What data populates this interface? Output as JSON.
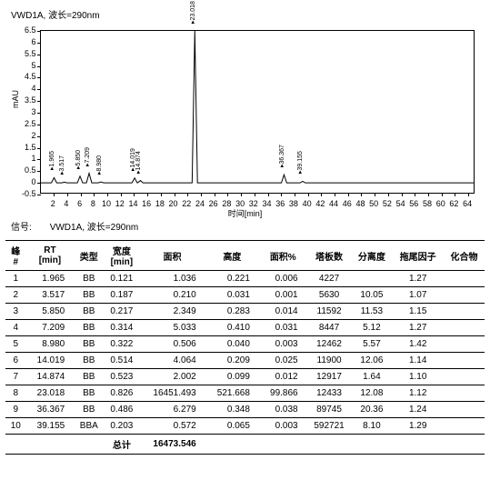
{
  "signal_header": "VWD1A, 波长=290nm",
  "signal_label": "信号:",
  "chart": {
    "type": "line",
    "xlabel": "时间[min]",
    "ylabel": "mAU",
    "xlim": [
      0,
      65
    ],
    "xtick_step": 2,
    "ylim": [
      -0.5,
      6.5
    ],
    "ytick_step": 0.5,
    "baseline": 0,
    "peaks": [
      {
        "rt": 1.965,
        "h": 0.221,
        "label": "1.965"
      },
      {
        "rt": 3.517,
        "h": 0.031,
        "label": "3.517"
      },
      {
        "rt": 5.85,
        "h": 0.283,
        "label": "5.850"
      },
      {
        "rt": 7.209,
        "h": 0.41,
        "label": "7.209"
      },
      {
        "rt": 8.98,
        "h": 0.04,
        "label": "8.980"
      },
      {
        "rt": 14.019,
        "h": 0.209,
        "label": "14.019"
      },
      {
        "rt": 14.874,
        "h": 0.099,
        "label": "14.874"
      },
      {
        "rt": 23.018,
        "h": 6.5,
        "label": "23.018"
      },
      {
        "rt": 36.367,
        "h": 0.348,
        "label": "36.367"
      },
      {
        "rt": 39.155,
        "h": 0.065,
        "label": "39.155"
      }
    ],
    "colors": {
      "line": "#000000",
      "bg": "#ffffff"
    }
  },
  "table": {
    "columns": [
      "峰\n#",
      "RT\n[min]",
      "类型",
      "宽度\n[min]",
      "面积",
      "高度",
      "面积%",
      "塔板数",
      "分离度",
      "拖尾因子",
      "化合物"
    ],
    "rows": [
      [
        "1",
        "1.965",
        "BB",
        "0.121",
        "1.036",
        "0.221",
        "0.006",
        "4227",
        "",
        "1.27",
        ""
      ],
      [
        "2",
        "3.517",
        "BB",
        "0.187",
        "0.210",
        "0.031",
        "0.001",
        "5630",
        "10.05",
        "1.07",
        ""
      ],
      [
        "3",
        "5.850",
        "BB",
        "0.217",
        "2.349",
        "0.283",
        "0.014",
        "11592",
        "11.53",
        "1.15",
        ""
      ],
      [
        "4",
        "7.209",
        "BB",
        "0.314",
        "5.033",
        "0.410",
        "0.031",
        "8447",
        "5.12",
        "1.27",
        ""
      ],
      [
        "5",
        "8.980",
        "BB",
        "0.322",
        "0.506",
        "0.040",
        "0.003",
        "12462",
        "5.57",
        "1.42",
        ""
      ],
      [
        "6",
        "14.019",
        "BB",
        "0.514",
        "4.064",
        "0.209",
        "0.025",
        "11900",
        "12.06",
        "1.14",
        ""
      ],
      [
        "7",
        "14.874",
        "BB",
        "0.523",
        "2.002",
        "0.099",
        "0.012",
        "12917",
        "1.64",
        "1.10",
        ""
      ],
      [
        "8",
        "23.018",
        "BB",
        "0.826",
        "16451.493",
        "521.668",
        "99.866",
        "12433",
        "12.08",
        "1.12",
        ""
      ],
      [
        "9",
        "36.367",
        "BB",
        "0.486",
        "6.279",
        "0.348",
        "0.038",
        "89745",
        "20.36",
        "1.24",
        ""
      ],
      [
        "10",
        "39.155",
        "BBA",
        "0.203",
        "0.572",
        "0.065",
        "0.003",
        "592721",
        "8.10",
        "1.29",
        ""
      ]
    ],
    "total_label": "总计",
    "total_value": "16473.546"
  }
}
